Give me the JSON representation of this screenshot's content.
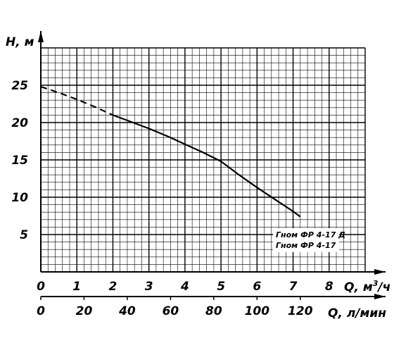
{
  "chart_data": {
    "type": "line",
    "y_axis": {
      "label": "H, м",
      "range": [
        0,
        30
      ],
      "ticks": [
        5,
        10,
        15,
        20,
        25
      ]
    },
    "x_axis_primary": {
      "label": "Q, м³/ч",
      "label_base": "Q, м",
      "label_sup": "3",
      "label_suffix": "/ч",
      "range": [
        0,
        9
      ],
      "ticks": [
        "0",
        "1",
        "2",
        "3",
        "4",
        "5",
        "6",
        "7",
        "8"
      ]
    },
    "x_axis_secondary": {
      "label": "Q, л/мин",
      "range": [
        0,
        150
      ],
      "ticks": [
        "0",
        "20",
        "40",
        "60",
        "80",
        "100",
        "120"
      ]
    },
    "grid": "on",
    "legend": {
      "placement": "lower-right",
      "entries": [
        "Гном ФР 4-17 Д",
        "Гном ФР 4-17"
      ]
    },
    "series": [
      {
        "name": "Гном ФР 4-17 Д",
        "style": "dashed",
        "x": [
          0,
          0.5,
          1.0,
          1.5,
          2.0
        ],
        "y": [
          24.8,
          24.0,
          23.1,
          22.1,
          21.0
        ]
      },
      {
        "name": "Гном ФР 4-17",
        "style": "solid",
        "x": [
          2.0,
          2.5,
          3.0,
          3.5,
          4.0,
          4.5,
          5.0,
          5.5,
          6.0,
          6.5,
          7.0,
          7.2
        ],
        "y": [
          21.0,
          20.1,
          19.2,
          18.2,
          17.1,
          16.0,
          14.8,
          13.0,
          11.3,
          9.7,
          8.1,
          7.4
        ]
      }
    ]
  }
}
